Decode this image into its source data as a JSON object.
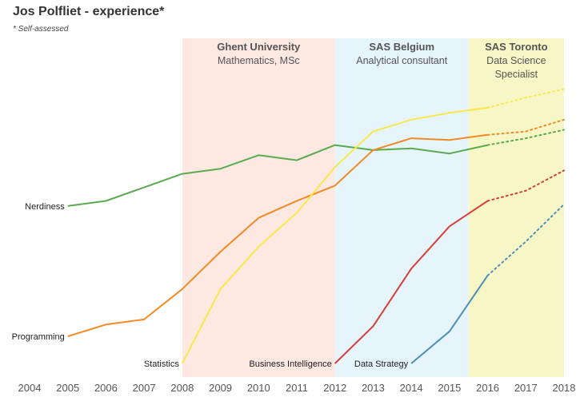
{
  "header": {
    "title": "Jos Polfliet - experience*",
    "subtitle": "* Self-assessed"
  },
  "chart_data": {
    "type": "line",
    "title": "Jos Polfliet - experience*",
    "subtitle": "* Self-assessed",
    "xlabel": "",
    "ylabel": "",
    "x_ticks": [
      2004,
      2005,
      2006,
      2007,
      2008,
      2009,
      2010,
      2011,
      2012,
      2013,
      2014,
      2015,
      2016,
      2017,
      2018
    ],
    "xlim": [
      2004,
      2018
    ],
    "ylim": [
      0,
      100
    ],
    "grid": false,
    "note": "Solid lines up to 2016, dotted projections 2016-2018",
    "eras": [
      {
        "name": "Ghent University",
        "description": [
          "Mathematics, MSc"
        ],
        "x_start": 2008,
        "x_end": 2012,
        "color": "#fde8e2"
      },
      {
        "name": "SAS Belgium",
        "description": [
          "Analytical consultant"
        ],
        "x_start": 2012,
        "x_end": 2015.5,
        "color": "#e6f4fc"
      },
      {
        "name": "SAS Toronto",
        "description": [
          "Data Science",
          "Specialist"
        ],
        "x_start": 2015.5,
        "x_end": 2018,
        "color": "#f7f6c6"
      }
    ],
    "series": [
      {
        "name": "Nerdiness",
        "color": "#5aaa4e",
        "x": [
          2005,
          2006,
          2007,
          2008,
          2009,
          2010,
          2011,
          2012,
          2013,
          2014,
          2015,
          2016
        ],
        "values": [
          50.5,
          52,
          56,
          60,
          61.5,
          65.5,
          64,
          68.5,
          67,
          67.5,
          66,
          68.5
        ],
        "projection_x": [
          2016,
          2017,
          2018
        ],
        "projection_values": [
          68.5,
          70.5,
          73
        ]
      },
      {
        "name": "Programming",
        "color": "#f28a25",
        "x": [
          2005,
          2006,
          2007,
          2008,
          2009,
          2010,
          2011,
          2012,
          2013,
          2014,
          2015,
          2016
        ],
        "values": [
          12,
          15.5,
          17,
          26,
          37,
          47,
          52,
          56.5,
          67,
          70.5,
          70,
          71.5
        ],
        "projection_x": [
          2016,
          2017,
          2018
        ],
        "projection_values": [
          71.5,
          72.5,
          76
        ]
      },
      {
        "name": "Statistics",
        "color": "#fbe84a",
        "x": [
          2008,
          2009,
          2010,
          2011,
          2012,
          2013,
          2014,
          2015,
          2016
        ],
        "values": [
          4,
          26,
          38.5,
          48.5,
          62,
          72.5,
          76,
          78,
          79.5
        ],
        "projection_x": [
          2016,
          2017,
          2018
        ],
        "projection_values": [
          79.5,
          82.5,
          85
        ]
      },
      {
        "name": "Business Intelligence",
        "color": "#d43f3c",
        "x": [
          2012,
          2013,
          2014,
          2015,
          2016
        ],
        "values": [
          4,
          15,
          32,
          44.5,
          52
        ],
        "projection_x": [
          2016,
          2017,
          2018
        ],
        "projection_values": [
          52,
          55,
          61
        ]
      },
      {
        "name": "Data Strategy",
        "color": "#4e8fb7",
        "x": [
          2014,
          2015,
          2016
        ],
        "values": [
          4,
          13.5,
          30
        ],
        "projection_x": [
          2016,
          2017,
          2018
        ],
        "projection_values": [
          30,
          40,
          51
        ]
      }
    ]
  }
}
